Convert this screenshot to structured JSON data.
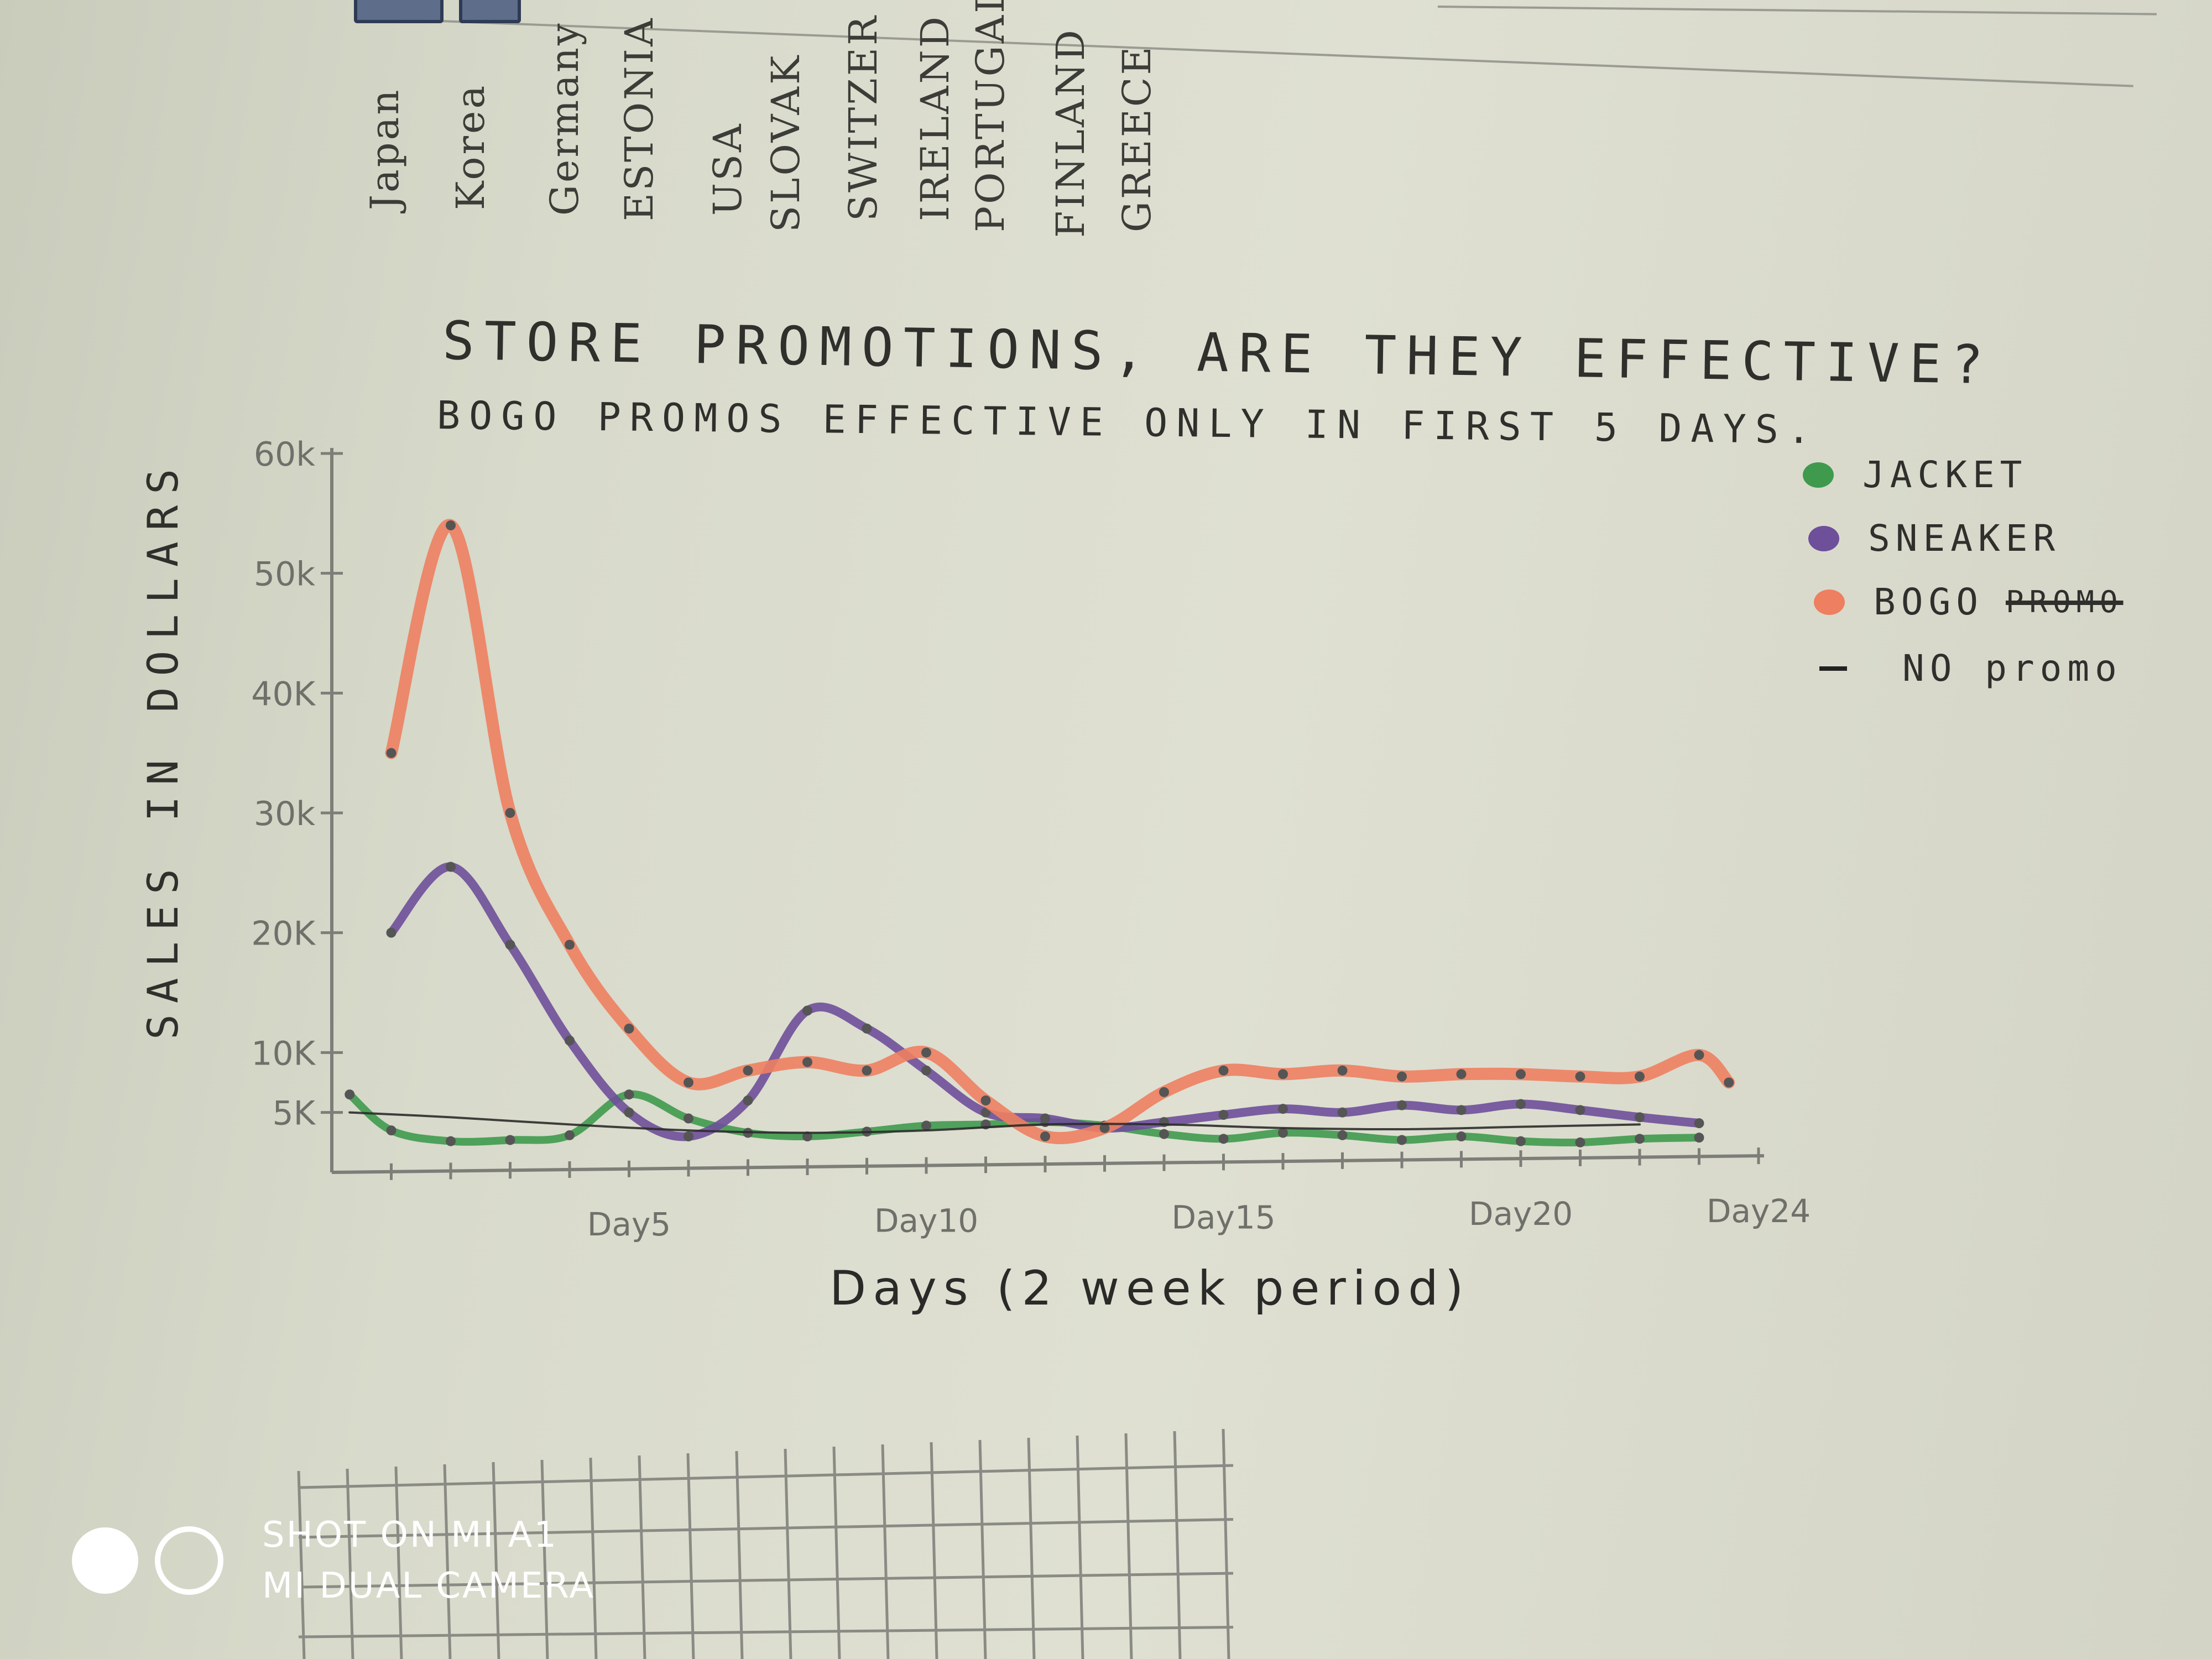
{
  "header_countries": [
    "Japan",
    "Korea",
    "Germany",
    "ESTONIA",
    "USA",
    "SLOVAK",
    "SWITZER",
    "IRELAND",
    "PORTUGAL",
    "FINLAND",
    "GREECE"
  ],
  "chart_data": {
    "type": "line",
    "title": "STORE PROMOTIONS, ARE THEY EFFECTIVE?",
    "subtitle": "BOGO PROMOS EFFECTIVE ONLY IN FIRST 5 DAYS.",
    "xlabel": "Days (2 week period)",
    "ylabel": "SALES IN DOLLARS",
    "ylim": [
      0,
      60000
    ],
    "xlim": [
      0,
      24
    ],
    "y_ticks": [
      {
        "value": 5000,
        "label": "5K"
      },
      {
        "value": 10000,
        "label": "10K"
      },
      {
        "value": 20000,
        "label": "20K"
      },
      {
        "value": 30000,
        "label": "30k"
      },
      {
        "value": 40000,
        "label": "40K"
      },
      {
        "value": 50000,
        "label": "50k"
      },
      {
        "value": 60000,
        "label": "60k"
      }
    ],
    "x_ticks": [
      {
        "value": 5,
        "label": "Day5"
      },
      {
        "value": 10,
        "label": "Day10"
      },
      {
        "value": 15,
        "label": "Day15"
      },
      {
        "value": 20,
        "label": "Day20"
      },
      {
        "value": 24,
        "label": "Day24"
      }
    ],
    "series": [
      {
        "name": "JACKET",
        "color": "#3f9a4e",
        "x": [
          0.3,
          1,
          2,
          3,
          4,
          5,
          6,
          7,
          8,
          9,
          10,
          11,
          12,
          13,
          14,
          15,
          16,
          17,
          18,
          19,
          20,
          21,
          22,
          23
        ],
        "y": [
          6500,
          3500,
          2600,
          2700,
          3100,
          6500,
          4500,
          3300,
          3000,
          3400,
          3900,
          4000,
          4200,
          3900,
          3200,
          2800,
          3300,
          3100,
          2700,
          3000,
          2600,
          2500,
          2800,
          2900
        ]
      },
      {
        "name": "SNEAKER",
        "color": "#6e4f9a",
        "x": [
          1,
          2,
          3,
          4,
          5,
          6,
          7,
          8,
          9,
          10,
          11,
          12,
          13,
          14,
          15,
          16,
          17,
          18,
          19,
          20,
          21,
          22,
          23
        ],
        "y": [
          20000,
          25500,
          19000,
          11000,
          5000,
          3000,
          6000,
          13500,
          12000,
          8500,
          5000,
          4500,
          3700,
          4200,
          4800,
          5300,
          5000,
          5600,
          5200,
          5700,
          5200,
          4600,
          4100
        ]
      },
      {
        "name": "BOGO",
        "color": "#ee7f60",
        "x": [
          1,
          2,
          3,
          4,
          5,
          6,
          7,
          8,
          9,
          10,
          11,
          12,
          13,
          14,
          15,
          16,
          17,
          18,
          19,
          20,
          21,
          22,
          23,
          23.5
        ],
        "y": [
          35000,
          54000,
          30000,
          19000,
          12000,
          7500,
          8500,
          9200,
          8500,
          10000,
          6000,
          3000,
          3700,
          6700,
          8500,
          8200,
          8500,
          8000,
          8200,
          8200,
          8000,
          8000,
          9800,
          7500
        ]
      },
      {
        "name": "NO PROMO",
        "color": "#2b2b2b",
        "x": [
          0.3,
          2,
          4,
          6,
          8,
          10,
          12,
          14,
          16,
          18,
          20,
          22
        ],
        "y": [
          5000,
          4600,
          4000,
          3500,
          3300,
          3500,
          4000,
          4000,
          3700,
          3600,
          3800,
          4000
        ]
      }
    ],
    "legend": {
      "placement": "right",
      "entries": [
        {
          "label": "JACKET",
          "marker": "dot",
          "color": "#3f9a4e"
        },
        {
          "label": "SNEAKER",
          "marker": "dot",
          "color": "#6e4f9a"
        },
        {
          "label": "BOGO",
          "strike": "PROMO",
          "marker": "dot",
          "color": "#ee7f60"
        },
        {
          "label": "NO promo",
          "marker": "dash",
          "color": "#222222"
        }
      ]
    },
    "grid": false
  },
  "watermark": {
    "line1": "SHOT ON MI A1",
    "line2": "MI DUAL CAMERA"
  }
}
